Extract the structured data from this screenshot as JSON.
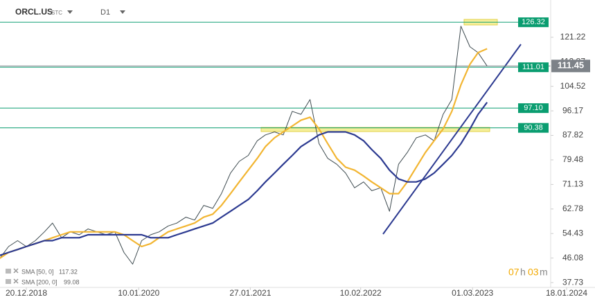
{
  "chart_data": {
    "type": "line",
    "symbol": "ORCL.US",
    "symbol_type": "STC",
    "timeframe": "D1",
    "x": [
      "2018-09-20",
      "2018-10-20",
      "2018-11-20",
      "2018-12-20",
      "2019-01-20",
      "2019-02-20",
      "2019-03-20",
      "2019-04-20",
      "2019-05-20",
      "2019-06-20",
      "2019-07-20",
      "2019-08-20",
      "2019-09-20",
      "2019-10-20",
      "2019-11-20",
      "2019-12-20",
      "2020-01-20",
      "2020-02-20",
      "2020-03-20",
      "2020-04-20",
      "2020-05-20",
      "2020-06-20",
      "2020-07-20",
      "2020-08-20",
      "2020-09-20",
      "2020-10-20",
      "2020-11-20",
      "2020-12-20",
      "2021-01-20",
      "2021-02-20",
      "2021-03-20",
      "2021-04-20",
      "2021-05-20",
      "2021-06-20",
      "2021-07-20",
      "2021-08-20",
      "2021-09-20",
      "2021-10-20",
      "2021-11-20",
      "2021-12-20",
      "2022-01-20",
      "2022-02-20",
      "2022-03-20",
      "2022-04-20",
      "2022-05-20",
      "2022-06-20",
      "2022-07-20",
      "2022-08-20",
      "2022-09-20",
      "2022-10-20",
      "2022-11-20",
      "2022-12-20",
      "2023-01-20",
      "2023-02-20",
      "2023-03-20",
      "2023-04-20"
    ],
    "series": [
      {
        "color": "#3d4a4f",
        "values": [
          46,
          50,
          52,
          50,
          52,
          55,
          58,
          53,
          55,
          54,
          56,
          55,
          54,
          55,
          48,
          44,
          52,
          54,
          55,
          57,
          58,
          60,
          59,
          64,
          63,
          68,
          75,
          79,
          81,
          86,
          88,
          89,
          88,
          96,
          95,
          100,
          85,
          80,
          78,
          75,
          70,
          72,
          69,
          70,
          62,
          78,
          82,
          87,
          88,
          86,
          95,
          100,
          125,
          118,
          116,
          111.45
        ]
      },
      {
        "name": "SMA [50, 0]",
        "color": "#f2b531",
        "values": [
          46,
          48,
          49,
          50,
          51,
          52,
          53,
          54,
          55,
          55,
          55,
          55,
          55,
          55,
          54,
          52,
          50,
          51,
          53,
          55,
          56,
          57,
          58,
          60,
          61,
          64,
          68,
          72,
          76,
          80,
          84,
          87,
          89,
          91,
          93,
          94,
          90,
          85,
          80,
          77,
          76,
          74,
          72,
          70,
          68,
          68,
          72,
          77,
          82,
          86,
          90,
          96,
          105,
          112,
          116,
          117.32
        ]
      },
      {
        "name": "SMA [200, 0]",
        "color": "#2b3990",
        "values": [
          47,
          48,
          49,
          50,
          51,
          52,
          52,
          53,
          53,
          53,
          54,
          54,
          54,
          54,
          54,
          54,
          54,
          53,
          53,
          53,
          54,
          55,
          56,
          57,
          58,
          60,
          62,
          64,
          66,
          69,
          72,
          75,
          78,
          81,
          84,
          86,
          88,
          89,
          89,
          89,
          88,
          86,
          83,
          80,
          76,
          73,
          72,
          72,
          73,
          75,
          78,
          81,
          85,
          90,
          95,
          99.08
        ]
      }
    ],
    "levels": [
      {
        "value": 126.32,
        "color": "#0a9d70"
      },
      {
        "value": 111.01,
        "color": "#0a9d70"
      },
      {
        "value": 97.1,
        "label": "97.10",
        "color": "#0a9d70"
      },
      {
        "value": 90.38,
        "color": "#0a9d70"
      }
    ],
    "current_price": {
      "value": 111.45,
      "color": "#7d8288"
    },
    "ylim": [
      36.1,
      133.9
    ],
    "yticks": [
      37.73,
      46.08,
      54.43,
      62.78,
      71.13,
      79.48,
      87.82,
      96.17,
      104.52,
      112.87,
      121.22
    ],
    "xticks": [
      {
        "value": "2018-12-20",
        "label": "20.12.2018"
      },
      {
        "value": "2020-01-10",
        "label": "10.01.2020"
      },
      {
        "value": "2021-01-27",
        "label": "27.01.2021"
      },
      {
        "value": "2022-02-10",
        "label": "10.02.2022"
      },
      {
        "value": "2023-03-01",
        "label": "01.03.2023"
      },
      {
        "value": "2024-01-18",
        "label": "18.01.2024"
      }
    ],
    "countdown": [
      "07",
      "h",
      "03",
      "m"
    ]
  }
}
